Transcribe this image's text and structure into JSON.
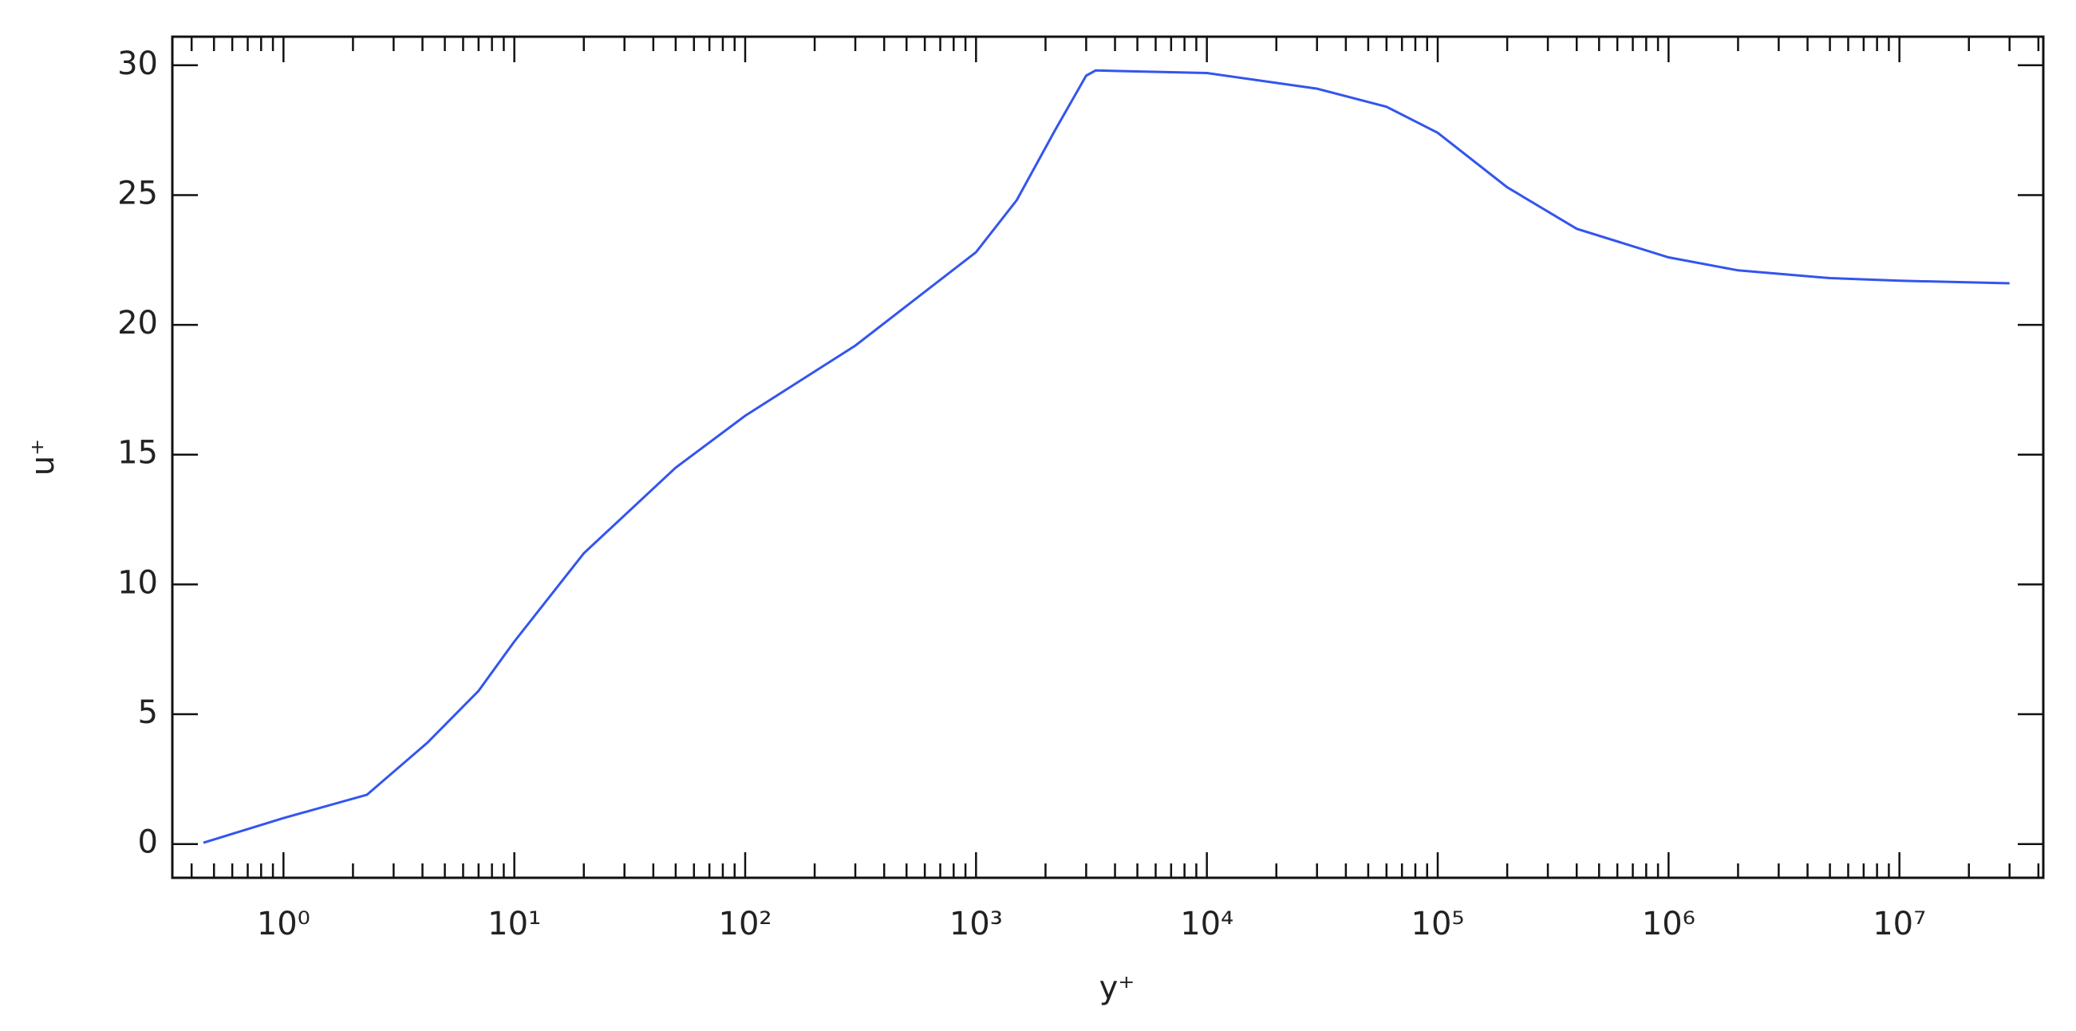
{
  "chart_data": {
    "type": "line",
    "x_label": "y⁺",
    "y_label": "u⁺",
    "xscale": "log",
    "x": [
      0.45,
      1,
      2.3,
      4.2,
      7,
      10,
      20,
      50,
      100,
      300,
      1000,
      1500,
      2200,
      3000,
      3300,
      10000,
      30000,
      60000,
      100000,
      200000,
      400000,
      1000000,
      2000000,
      5000000,
      10000000,
      30000000
    ],
    "series": [
      {
        "color": "#3355ee",
        "values": [
          0.05,
          1.0,
          1.9,
          3.9,
          5.9,
          7.8,
          11.2,
          14.5,
          16.5,
          19.2,
          22.8,
          24.8,
          27.5,
          29.6,
          29.8,
          29.7,
          29.1,
          28.4,
          27.4,
          25.3,
          23.7,
          22.6,
          22.1,
          21.8,
          21.7,
          21.6
        ]
      }
    ],
    "xlim": [
      0.33,
      42000000
    ],
    "ylim": [
      -1.3,
      31.1
    ],
    "xticks": [
      {
        "value": 1,
        "label": "10⁰"
      },
      {
        "value": 10,
        "label": "10¹"
      },
      {
        "value": 100,
        "label": "10²"
      },
      {
        "value": 1000,
        "label": "10³"
      },
      {
        "value": 10000,
        "label": "10⁴"
      },
      {
        "value": 100000,
        "label": "10⁵"
      },
      {
        "value": 1000000,
        "label": "10⁶"
      },
      {
        "value": 10000000,
        "label": "10⁷"
      }
    ],
    "xminorticks": [
      0.4,
      0.5,
      0.6,
      0.7,
      0.8,
      0.9,
      2,
      3,
      4,
      5,
      6,
      7,
      8,
      9,
      20,
      30,
      40,
      50,
      60,
      70,
      80,
      90,
      200,
      300,
      400,
      500,
      600,
      700,
      800,
      900,
      2000,
      3000,
      4000,
      5000,
      6000,
      7000,
      8000,
      9000,
      20000,
      30000,
      40000,
      50000,
      60000,
      70000,
      80000,
      90000,
      200000,
      300000,
      400000,
      500000,
      600000,
      700000,
      800000,
      900000,
      2000000,
      3000000,
      4000000,
      5000000,
      6000000,
      7000000,
      8000000,
      9000000,
      20000000,
      30000000,
      40000000
    ],
    "yticks": [
      0,
      5,
      10,
      15,
      20,
      25,
      30
    ],
    "grid": false
  }
}
